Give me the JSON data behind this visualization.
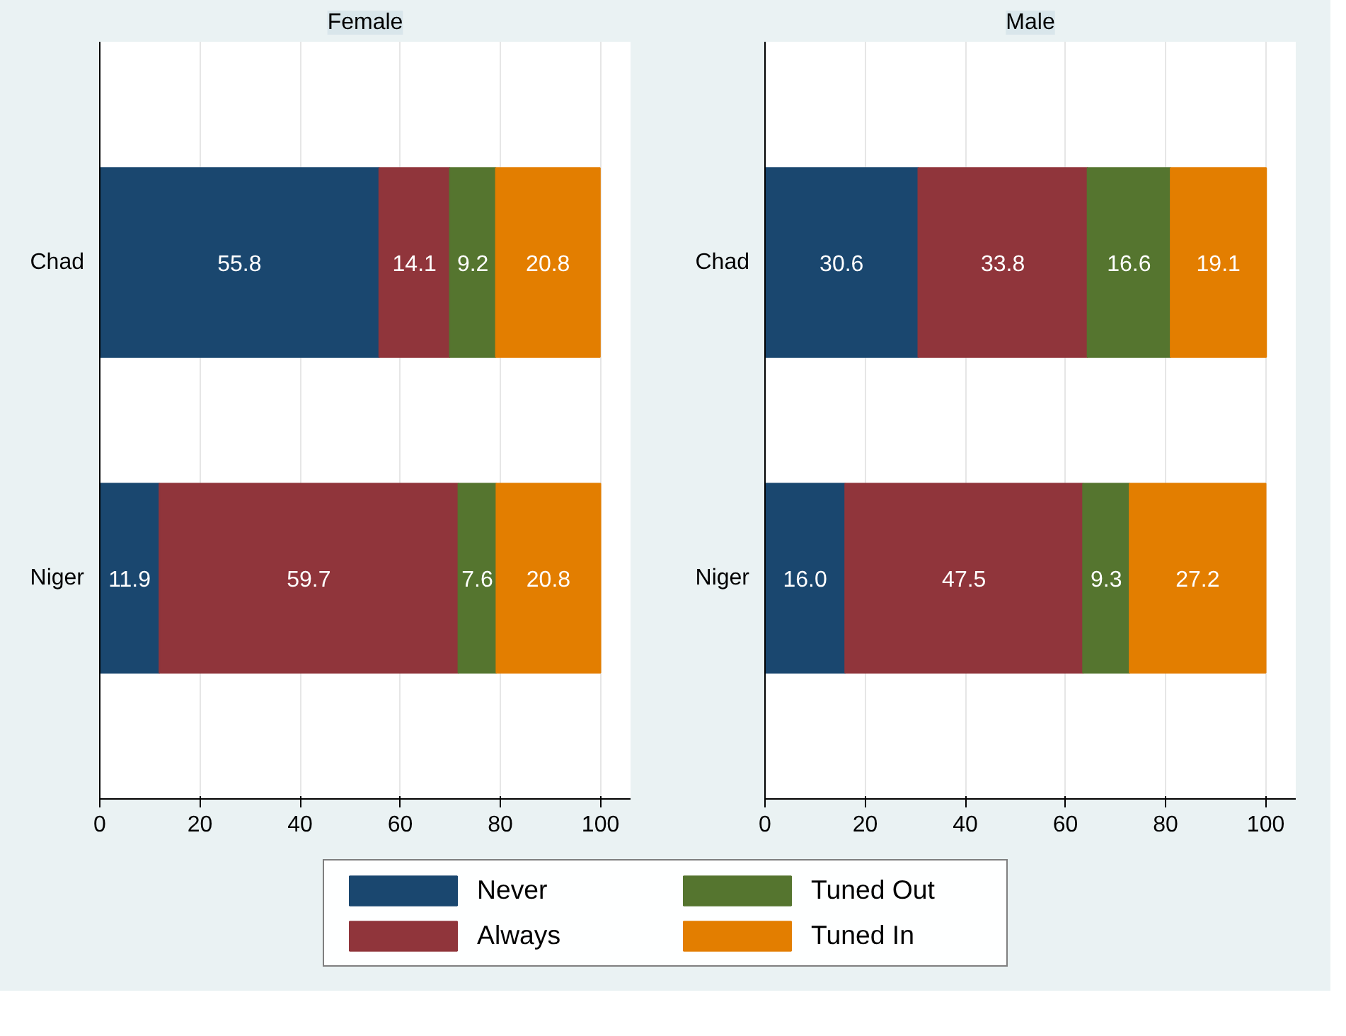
{
  "chart_data": [
    {
      "type": "bar",
      "orientation": "horizontal",
      "stacked": true,
      "title": "Female",
      "categories": [
        "Chad",
        "Niger"
      ],
      "xlim": [
        0,
        106
      ],
      "xticks": [
        0,
        20,
        40,
        60,
        80,
        100
      ],
      "grid": "x",
      "legend": "bottom",
      "series": [
        {
          "name": "Never",
          "color": "#1a476f",
          "values": [
            55.8,
            11.9
          ],
          "value_labels": [
            "55.8",
            "11.9"
          ]
        },
        {
          "name": "Always",
          "color": "#90353b",
          "values": [
            14.1,
            59.7
          ],
          "value_labels": [
            "14.1",
            "59.7"
          ]
        },
        {
          "name": "Tuned Out",
          "color": "#55752f",
          "values": [
            9.2,
            7.6
          ],
          "value_labels": [
            "9.2",
            "7.6"
          ]
        },
        {
          "name": "Tuned In",
          "color": "#e37e00",
          "values": [
            20.8,
            20.8
          ],
          "value_labels": [
            "20.8",
            "20.8"
          ]
        }
      ]
    },
    {
      "type": "bar",
      "orientation": "horizontal",
      "stacked": true,
      "title": "Male",
      "categories": [
        "Chad",
        "Niger"
      ],
      "xlim": [
        0,
        106
      ],
      "xticks": [
        0,
        20,
        40,
        60,
        80,
        100
      ],
      "grid": "x",
      "series": [
        {
          "color": "#1a476f",
          "values": [
            30.6,
            16
          ],
          "value_labels": [
            "30.6",
            "16.0"
          ]
        },
        {
          "color": "#90353b",
          "values": [
            33.8,
            47.5
          ],
          "value_labels": [
            "33.8",
            "47.5"
          ]
        },
        {
          "color": "#55752f",
          "values": [
            16.6,
            9.3
          ],
          "value_labels": [
            "16.6",
            "9.3"
          ]
        },
        {
          "color": "#e37e00",
          "values": [
            19.1,
            27.2
          ],
          "value_labels": [
            "19.1",
            "27.2"
          ]
        }
      ]
    }
  ]
}
